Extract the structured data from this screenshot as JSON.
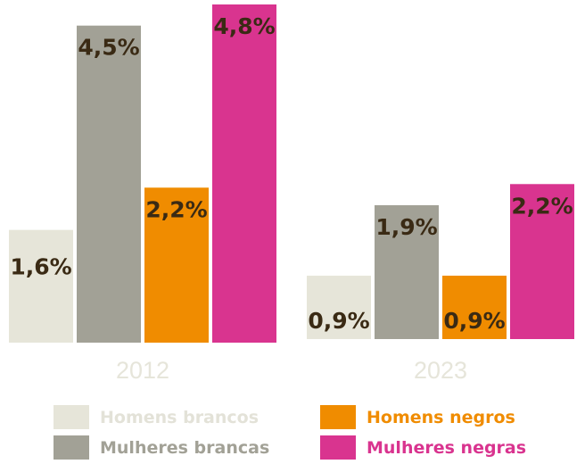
{
  "chart_data": {
    "type": "bar",
    "categories": [
      "2012",
      "2023"
    ],
    "series": [
      {
        "name": "Homens brancos",
        "values": [
          1.6,
          0.9
        ],
        "labels": [
          "1,6%",
          "0,9%"
        ],
        "color": "#e6e5d9",
        "label_color": "#e3e2d8"
      },
      {
        "name": "Mulheres brancas",
        "values": [
          4.5,
          1.9
        ],
        "labels": [
          "4,5%",
          "1,9%"
        ],
        "color": "#a2a196",
        "label_color": "#a2a196"
      },
      {
        "name": "Homens negros",
        "values": [
          2.2,
          0.9
        ],
        "labels": [
          "2,2%",
          "0,9%"
        ],
        "color": "#f08c00",
        "label_color": "#f08c00"
      },
      {
        "name": "Mulheres negras",
        "values": [
          4.8,
          2.2
        ],
        "labels": [
          "4,8%",
          "2,2%"
        ],
        "color": "#d9348f",
        "label_color": "#d9348f"
      }
    ],
    "ylim": [
      0,
      4.8
    ],
    "value_label_color": "#3a2a14",
    "grid": false,
    "legend_position": "bottom"
  }
}
